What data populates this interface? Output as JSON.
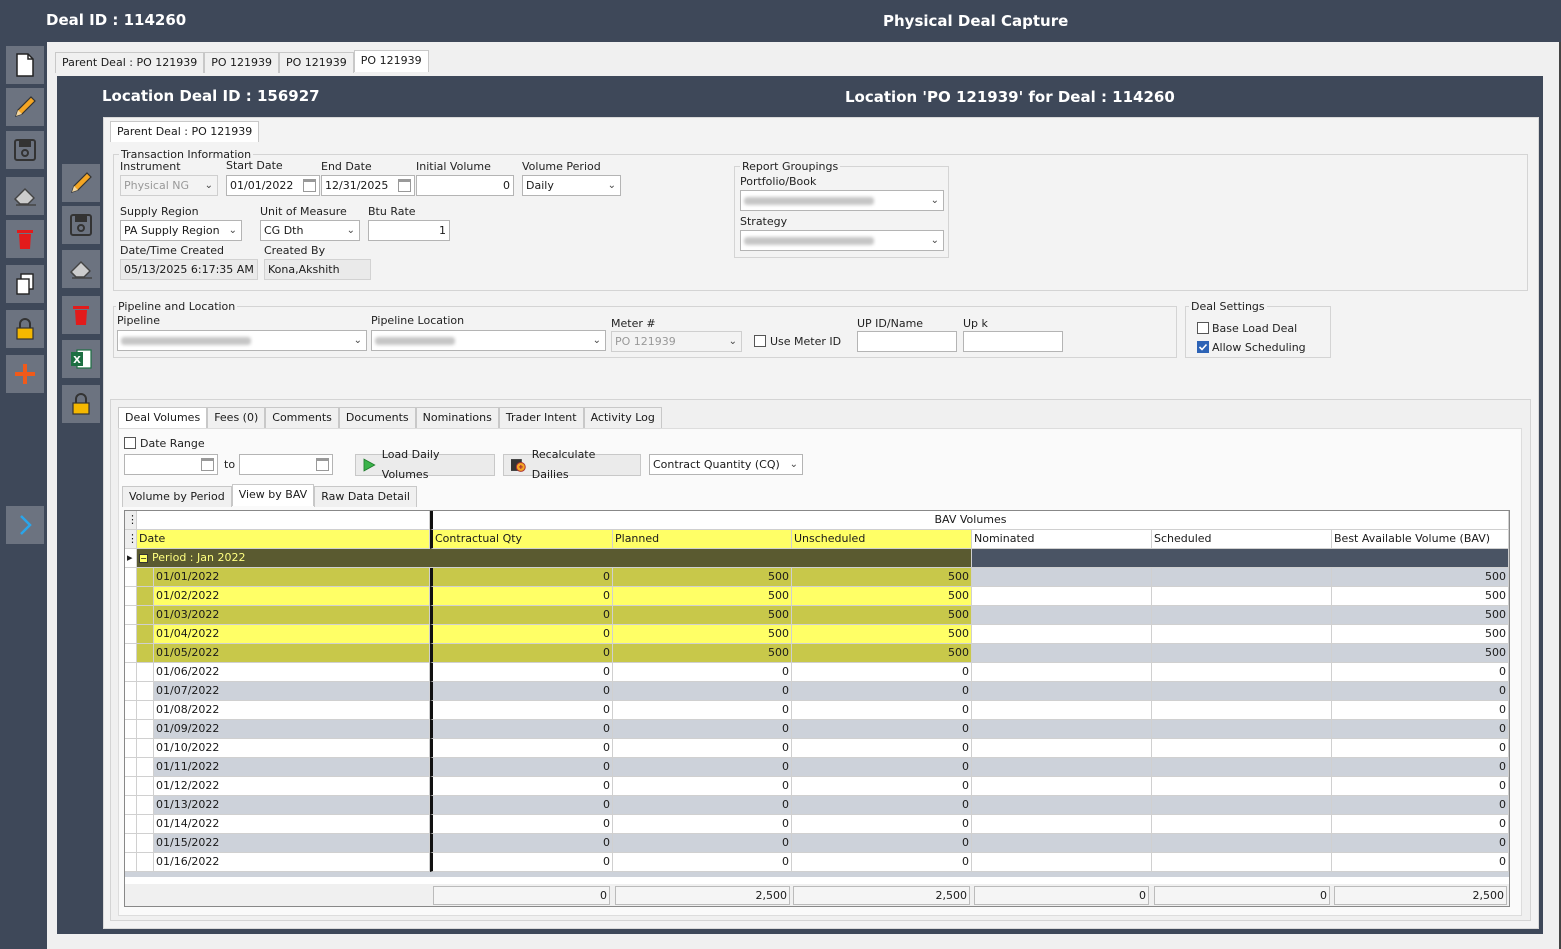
{
  "header": {
    "deal_id": "Deal ID : 114260",
    "title": "Physical Deal Capture"
  },
  "outer_tabs": [
    "Parent Deal : PO 121939",
    "PO 121939",
    "PO 121939",
    "PO 121939"
  ],
  "location": {
    "deal_id": "Location Deal ID : 156927",
    "title": "Location 'PO 121939' for Deal : 114260"
  },
  "inner_tab": "Parent Deal : PO 121939",
  "transaction": {
    "group_label": "Transaction Information",
    "instrument_label": "Instrument",
    "instrument": "Physical NG",
    "start_label": "Start Date",
    "start": "01/01/2022",
    "end_label": "End Date",
    "end": "12/31/2025",
    "initvol_label": "Initial Volume",
    "initvol": "0",
    "volperiod_label": "Volume Period",
    "volperiod": "Daily",
    "supply_label": "Supply Region",
    "supply": "PA Supply Region",
    "uom_label": "Unit of Measure",
    "uom": "CG Dth",
    "btu_label": "Btu Rate",
    "btu": "1",
    "created_dt_label": "Date/Time Created",
    "created_dt": "05/13/2025 6:17:35 AM",
    "created_by_label": "Created By",
    "created_by": "Kona,Akshith"
  },
  "report": {
    "group_label": "Report Groupings",
    "portfolio_label": "Portfolio/Book",
    "strategy_label": "Strategy"
  },
  "pipeline": {
    "group_label": "Pipeline and Location",
    "pipeline_label": "Pipeline",
    "location_label": "Pipeline Location",
    "meter_label": "Meter #",
    "meter": "PO 121939",
    "use_meter_label": "Use Meter ID",
    "upid_label": "UP ID/Name",
    "upk_label": "Up k"
  },
  "settings": {
    "group_label": "Deal Settings",
    "base_load": "Base Load Deal",
    "allow_sched": "Allow Scheduling"
  },
  "vol_tabs": [
    "Deal Volumes",
    "Fees (0)",
    "Comments",
    "Documents",
    "Nominations",
    "Trader Intent",
    "Activity Log"
  ],
  "controls": {
    "date_range": "Date Range",
    "to": "to",
    "load_btn": "Load Daily Volumes",
    "recalc_btn": "Recalculate Dailies",
    "quantity": "Contract Quantity (CQ)"
  },
  "view_tabs": [
    "Volume by Period",
    "View by BAV",
    "Raw Data Detail"
  ],
  "grid": {
    "band": "BAV Volumes",
    "columns": [
      "Date",
      "Contractual Qty",
      "Planned",
      "Unscheduled",
      "Nominated",
      "Scheduled",
      "Best Available Volume (BAV)"
    ],
    "group": "Period : Jan 2022",
    "rows": [
      {
        "date": "01/01/2022",
        "cq": "0",
        "planned": "500",
        "unsched": "500",
        "nom": "",
        "sched": "",
        "bav": "500"
      },
      {
        "date": "01/02/2022",
        "cq": "0",
        "planned": "500",
        "unsched": "500",
        "nom": "",
        "sched": "",
        "bav": "500"
      },
      {
        "date": "01/03/2022",
        "cq": "0",
        "planned": "500",
        "unsched": "500",
        "nom": "",
        "sched": "",
        "bav": "500"
      },
      {
        "date": "01/04/2022",
        "cq": "0",
        "planned": "500",
        "unsched": "500",
        "nom": "",
        "sched": "",
        "bav": "500"
      },
      {
        "date": "01/05/2022",
        "cq": "0",
        "planned": "500",
        "unsched": "500",
        "nom": "",
        "sched": "",
        "bav": "500"
      },
      {
        "date": "01/06/2022",
        "cq": "0",
        "planned": "0",
        "unsched": "0",
        "nom": "",
        "sched": "",
        "bav": "0"
      },
      {
        "date": "01/07/2022",
        "cq": "0",
        "planned": "0",
        "unsched": "0",
        "nom": "",
        "sched": "",
        "bav": "0"
      },
      {
        "date": "01/08/2022",
        "cq": "0",
        "planned": "0",
        "unsched": "0",
        "nom": "",
        "sched": "",
        "bav": "0"
      },
      {
        "date": "01/09/2022",
        "cq": "0",
        "planned": "0",
        "unsched": "0",
        "nom": "",
        "sched": "",
        "bav": "0"
      },
      {
        "date": "01/10/2022",
        "cq": "0",
        "planned": "0",
        "unsched": "0",
        "nom": "",
        "sched": "",
        "bav": "0"
      },
      {
        "date": "01/11/2022",
        "cq": "0",
        "planned": "0",
        "unsched": "0",
        "nom": "",
        "sched": "",
        "bav": "0"
      },
      {
        "date": "01/12/2022",
        "cq": "0",
        "planned": "0",
        "unsched": "0",
        "nom": "",
        "sched": "",
        "bav": "0"
      },
      {
        "date": "01/13/2022",
        "cq": "0",
        "planned": "0",
        "unsched": "0",
        "nom": "",
        "sched": "",
        "bav": "0"
      },
      {
        "date": "01/14/2022",
        "cq": "0",
        "planned": "0",
        "unsched": "0",
        "nom": "",
        "sched": "",
        "bav": "0"
      },
      {
        "date": "01/15/2022",
        "cq": "0",
        "planned": "0",
        "unsched": "0",
        "nom": "",
        "sched": "",
        "bav": "0"
      },
      {
        "date": "01/16/2022",
        "cq": "0",
        "planned": "0",
        "unsched": "0",
        "nom": "",
        "sched": "",
        "bav": "0"
      }
    ],
    "totals": {
      "cq": "0",
      "planned": "2,500",
      "unsched": "2,500",
      "nom": "0",
      "sched": "0",
      "bav": "2,500"
    }
  },
  "icons": {
    "left": [
      "new-document-icon",
      "edit-icon",
      "save-icon",
      "eraser-icon",
      "delete-icon",
      "copy-icon",
      "lock-icon",
      "add-icon",
      "expand-arrow-icon"
    ],
    "inner": [
      "edit-icon",
      "save-icon",
      "eraser-icon",
      "delete-icon",
      "excel-icon",
      "lock-icon"
    ]
  },
  "colors": {
    "chrome": "#3e4859",
    "highlight": "#ffff66",
    "highlight_dark": "#c8c84a",
    "row_gray": "#cdd2da",
    "check": "#2d63b6"
  }
}
